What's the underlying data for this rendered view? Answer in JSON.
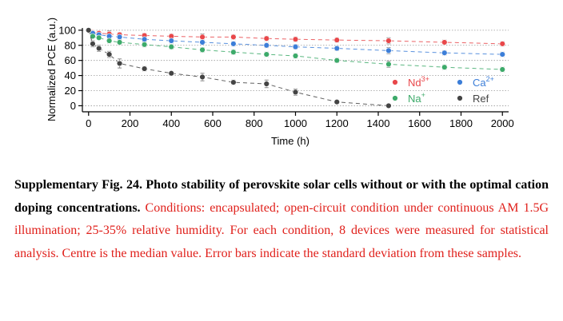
{
  "chart_data": {
    "type": "scatter",
    "xlabel": "Time (h)",
    "ylabel": "Normalized PCE (a.u.)",
    "xlim": [
      -30,
      2030
    ],
    "ylim": [
      -8,
      103
    ],
    "xticks": [
      0,
      200,
      400,
      600,
      800,
      1000,
      1200,
      1400,
      1600,
      1800,
      2000
    ],
    "yticks": [
      0,
      20,
      40,
      60,
      80,
      100
    ],
    "reference_lines": [
      0,
      20,
      40,
      60,
      80,
      100
    ],
    "legend_position": "bottom-right",
    "series": [
      {
        "name": "Nd",
        "name_sup": "3+",
        "color": "#e8474a",
        "x": [
          0,
          20,
          50,
          100,
          150,
          270,
          400,
          550,
          700,
          860,
          1000,
          1200,
          1450,
          1720,
          2000
        ],
        "y": [
          100,
          97,
          96,
          95,
          94,
          93,
          92,
          91,
          91,
          89,
          88,
          87,
          86,
          84,
          82
        ],
        "err": [
          1,
          2,
          2,
          4,
          3,
          3,
          3,
          4,
          3,
          3,
          3,
          3,
          4,
          3,
          3
        ]
      },
      {
        "name": "Ca",
        "name_sup": "2+",
        "color": "#3c7ed8",
        "x": [
          0,
          20,
          50,
          100,
          150,
          270,
          400,
          550,
          700,
          860,
          1000,
          1200,
          1450,
          1720,
          2000
        ],
        "y": [
          100,
          96,
          94,
          92,
          91,
          88,
          86,
          84,
          82,
          80,
          78,
          76,
          73,
          70,
          68
        ],
        "err": [
          1,
          2,
          2,
          3,
          3,
          3,
          3,
          3,
          3,
          3,
          3,
          3,
          4,
          3,
          3
        ]
      },
      {
        "name": "Na",
        "name_sup": "+",
        "color": "#3daa6a",
        "x": [
          0,
          20,
          50,
          100,
          150,
          270,
          400,
          550,
          700,
          860,
          1000,
          1200,
          1450,
          1720,
          2000
        ],
        "y": [
          100,
          92,
          90,
          86,
          84,
          81,
          78,
          74,
          71,
          68,
          66,
          60,
          55,
          51,
          48
        ],
        "err": [
          1,
          2,
          2,
          3,
          3,
          3,
          3,
          3,
          3,
          3,
          3,
          3,
          4,
          3,
          3
        ]
      },
      {
        "name": "Ref",
        "name_sup": "",
        "color": "#444444",
        "x": [
          0,
          20,
          50,
          100,
          150,
          270,
          400,
          550,
          700,
          860,
          1000,
          1200,
          1450
        ],
        "y": [
          100,
          82,
          76,
          68,
          56,
          49,
          43,
          38,
          31,
          29,
          18,
          5,
          0
        ],
        "err": [
          1,
          4,
          4,
          4,
          6,
          3,
          2,
          5,
          3,
          5,
          4,
          2,
          2
        ]
      }
    ]
  },
  "caption": {
    "bold_text": "Supplementary Fig. 24. Photo stability of perovskite solar cells without or with the optimal cation doping concentrations.",
    "red_text": " Conditions: encapsulated; open-circuit condition under continuous AM 1.5G illumination; 25-35% relative humidity. For each condition, 8 devices were measured for statistical analysis. Centre is the median value. Error bars indicate the standard deviation from these samples."
  }
}
